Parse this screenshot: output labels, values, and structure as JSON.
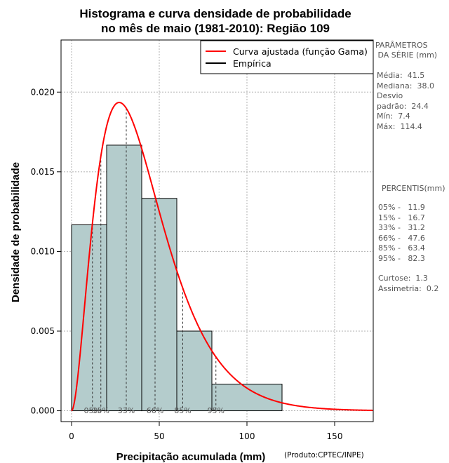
{
  "chart_data": {
    "type": "bar",
    "title_lines": [
      "Histograma e curva densidade de probabilidade",
      "no mês de maio (1981-2010): Região 109"
    ],
    "xlabel": "Precipitação acumulada (mm)",
    "ylabel": "Densidade de probabilidade",
    "credit": "(Produto:CPTEC/INPE)",
    "xlim": [
      -6,
      172
    ],
    "ylim": [
      -0.00068,
      0.02327
    ],
    "x_ticks": [
      0,
      50,
      100,
      150
    ],
    "y_ticks": [
      {
        "value": 0.0,
        "label": "0.000"
      },
      {
        "value": 0.005,
        "label": "0.005"
      },
      {
        "value": 0.01,
        "label": "0.010"
      },
      {
        "value": 0.015,
        "label": "0.015"
      },
      {
        "value": 0.02,
        "label": "0.020"
      }
    ],
    "histogram": {
      "bins": [
        {
          "x0": 0,
          "x1": 20,
          "density": 0.01167
        },
        {
          "x0": 20,
          "x1": 40,
          "density": 0.01667
        },
        {
          "x0": 40,
          "x1": 60,
          "density": 0.01333
        },
        {
          "x0": 60,
          "x1": 80,
          "density": 0.005
        },
        {
          "x0": 80,
          "x1": 120,
          "density": 0.00167
        }
      ],
      "fill": "#b4cccc"
    },
    "gamma_curve": {
      "mean": 41.5,
      "sd": 24.4,
      "color": "#ff0000",
      "x_from": 0,
      "x_to": 172
    },
    "percentile_lines": [
      {
        "label": "05%",
        "value": 11.9
      },
      {
        "label": "15%",
        "value": 16.7
      },
      {
        "label": "33%",
        "value": 31.2
      },
      {
        "label": "66%",
        "value": 47.6
      },
      {
        "label": "85%",
        "value": 63.4
      },
      {
        "label": "95%",
        "value": 82.3
      }
    ],
    "legend": [
      {
        "label": "Curva ajustada (função Gama)",
        "color": "#ff0000"
      },
      {
        "label": "Empírica",
        "color": "#000000"
      }
    ]
  },
  "side_panel": {
    "params_lines": [
      "PARÂMETROS",
      " DA SÉRIE (mm)"
    ],
    "stats_lines": [
      "Média:  41.5",
      "Mediana:  38.0",
      "Desvio",
      "padrão:  24.4",
      "Mín:  7.4",
      "Máx:  114.4"
    ],
    "percentis_title": "PERCENTIS(mm)",
    "percentis_lines": [
      "05% -   11.9",
      "15% -   16.7",
      "33% -   31.2",
      "66% -   47.6",
      "85% -   63.4",
      "95% -   82.3"
    ],
    "shape_lines": [
      "Curtose:  1.3",
      "Assimetria:  0.2"
    ]
  }
}
